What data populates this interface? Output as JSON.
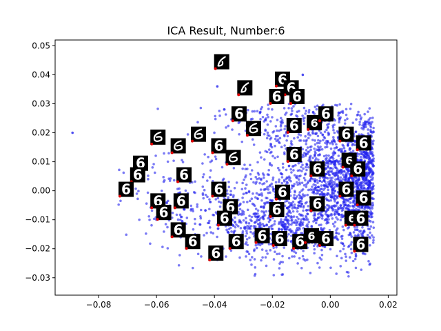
{
  "chart_data": {
    "type": "scatter",
    "title": "ICA Result, Number:6",
    "xlabel": "",
    "ylabel": "",
    "xlim": [
      -0.095,
      0.023
    ],
    "ylim": [
      -0.036,
      0.052
    ],
    "x_ticks": [
      -0.08,
      -0.06,
      -0.04,
      -0.02,
      0.0,
      0.02
    ],
    "x_tick_labels": [
      "−0.08",
      "−0.06",
      "−0.04",
      "−0.02",
      "0.00",
      "0.02"
    ],
    "y_ticks": [
      -0.03,
      -0.02,
      -0.01,
      0.0,
      0.01,
      0.02,
      0.03,
      0.04,
      0.05
    ],
    "y_tick_labels": [
      "−0.03",
      "−0.02",
      "−0.01",
      "0.00",
      "0.01",
      "0.02",
      "0.03",
      "0.04",
      "0.05"
    ],
    "grid": false,
    "point_color": "#2222ee",
    "thumbnail_anchor_color": "#e00000",
    "thumbnail_label": "6",
    "scatter_clusters": [
      {
        "cx": 0.0,
        "cy": 0.005,
        "sx": 0.012,
        "sy": 0.012,
        "n": 1100
      },
      {
        "cx": 0.008,
        "cy": 0.002,
        "sx": 0.005,
        "sy": 0.011,
        "n": 700
      },
      {
        "cx": -0.018,
        "cy": -0.012,
        "sx": 0.01,
        "sy": 0.006,
        "n": 450
      },
      {
        "cx": -0.035,
        "cy": -0.006,
        "sx": 0.014,
        "sy": 0.008,
        "n": 250
      },
      {
        "cx": -0.055,
        "cy": -0.002,
        "sx": 0.008,
        "sy": 0.008,
        "n": 60
      },
      {
        "cx": -0.022,
        "cy": 0.022,
        "sx": 0.01,
        "sy": 0.006,
        "n": 120
      }
    ],
    "outliers": [
      {
        "x": -0.089,
        "y": 0.02
      },
      {
        "x": -0.0095,
        "y": 0.04
      },
      {
        "x": -0.039,
        "y": 0.036
      }
    ],
    "thumbnails": [
      {
        "x": -0.0375,
        "y": 0.0445,
        "style": "hook"
      },
      {
        "x": -0.0295,
        "y": 0.0355,
        "style": "hook"
      },
      {
        "x": -0.0165,
        "y": 0.0385,
        "style": "six"
      },
      {
        "x": -0.0135,
        "y": 0.0355,
        "style": "six"
      },
      {
        "x": -0.0185,
        "y": 0.0325,
        "style": "six"
      },
      {
        "x": -0.0115,
        "y": 0.0325,
        "style": "six"
      },
      {
        "x": -0.0315,
        "y": 0.0265,
        "style": "six"
      },
      {
        "x": -0.0265,
        "y": 0.0215,
        "style": "round"
      },
      {
        "x": -0.0125,
        "y": 0.0225,
        "style": "six"
      },
      {
        "x": -0.0055,
        "y": 0.0235,
        "style": "slim"
      },
      {
        "x": -0.0015,
        "y": 0.0265,
        "style": "six"
      },
      {
        "x": 0.0055,
        "y": 0.0195,
        "style": "six"
      },
      {
        "x": 0.0115,
        "y": 0.0165,
        "style": "six"
      },
      {
        "x": -0.0595,
        "y": 0.0185,
        "style": "round"
      },
      {
        "x": -0.0525,
        "y": 0.0155,
        "style": "round"
      },
      {
        "x": -0.0455,
        "y": 0.0195,
        "style": "round"
      },
      {
        "x": -0.0385,
        "y": 0.0155,
        "style": "six"
      },
      {
        "x": -0.0335,
        "y": 0.0115,
        "style": "round"
      },
      {
        "x": -0.0125,
        "y": 0.0125,
        "style": "six"
      },
      {
        "x": -0.0655,
        "y": 0.0095,
        "style": "six"
      },
      {
        "x": -0.0665,
        "y": 0.0055,
        "style": "six"
      },
      {
        "x": -0.0505,
        "y": 0.0055,
        "style": "six"
      },
      {
        "x": -0.0045,
        "y": 0.0075,
        "style": "six"
      },
      {
        "x": 0.0065,
        "y": 0.0105,
        "style": "slim"
      },
      {
        "x": 0.0095,
        "y": 0.0075,
        "style": "six"
      },
      {
        "x": -0.0705,
        "y": 0.0005,
        "style": "six"
      },
      {
        "x": -0.0385,
        "y": 0.0005,
        "style": "six"
      },
      {
        "x": -0.0165,
        "y": -0.0005,
        "style": "six"
      },
      {
        "x": 0.0055,
        "y": 0.0005,
        "style": "six"
      },
      {
        "x": -0.0595,
        "y": -0.0035,
        "style": "six"
      },
      {
        "x": -0.0515,
        "y": -0.0035,
        "style": "six"
      },
      {
        "x": -0.0345,
        "y": -0.0055,
        "style": "six"
      },
      {
        "x": -0.0185,
        "y": -0.0065,
        "style": "six"
      },
      {
        "x": -0.0045,
        "y": -0.0045,
        "style": "six"
      },
      {
        "x": 0.0115,
        "y": -0.0025,
        "style": "six"
      },
      {
        "x": -0.0575,
        "y": -0.0075,
        "style": "six"
      },
      {
        "x": -0.0365,
        "y": -0.0095,
        "style": "six"
      },
      {
        "x": 0.0075,
        "y": -0.0095,
        "style": "slim"
      },
      {
        "x": 0.0105,
        "y": -0.0095,
        "style": "six"
      },
      {
        "x": -0.0525,
        "y": -0.0135,
        "style": "six"
      },
      {
        "x": -0.0475,
        "y": -0.0175,
        "style": "six"
      },
      {
        "x": -0.0325,
        "y": -0.0175,
        "style": "six"
      },
      {
        "x": -0.0235,
        "y": -0.0155,
        "style": "six"
      },
      {
        "x": -0.0175,
        "y": -0.0165,
        "style": "six"
      },
      {
        "x": -0.0105,
        "y": -0.0175,
        "style": "six"
      },
      {
        "x": -0.0065,
        "y": -0.0155,
        "style": "slim"
      },
      {
        "x": -0.0015,
        "y": -0.0165,
        "style": "six"
      },
      {
        "x": 0.0105,
        "y": -0.0185,
        "style": "six"
      },
      {
        "x": -0.0395,
        "y": -0.0215,
        "style": "six"
      }
    ]
  }
}
